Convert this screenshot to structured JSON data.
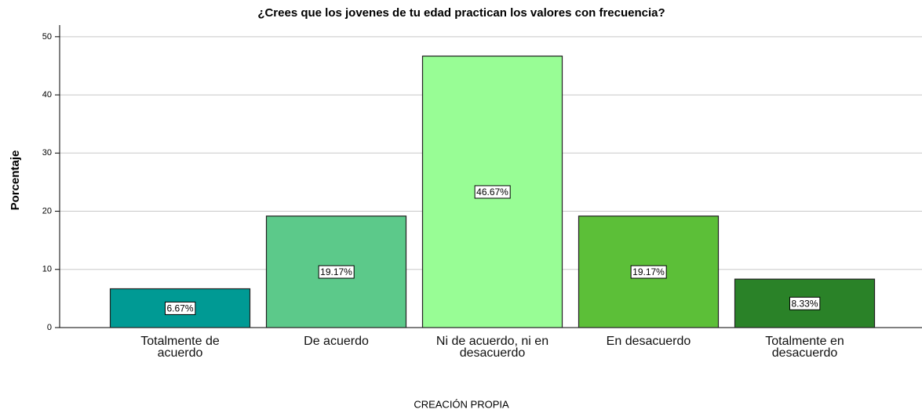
{
  "chart_data": {
    "type": "bar",
    "title": "¿Crees que los jovenes de tu edad practican los valores con frecuencia?",
    "ylabel": "Porcentaje",
    "xlabel": "CREACIÓN PROPIA",
    "categories": [
      "Totalmente de acuerdo",
      "De acuerdo",
      "Ni de acuerdo, ni en desacuerdo",
      "En desacuerdo",
      "Totalmente en desacuerdo"
    ],
    "values": [
      6.67,
      19.17,
      46.67,
      19.17,
      8.33
    ],
    "value_labels": [
      "6.67%",
      "19.17%",
      "46.67%",
      "19.17%",
      "8.33%"
    ],
    "colors": [
      "#009a94",
      "#5cc98a",
      "#98fd95",
      "#5cbf38",
      "#2a8228"
    ],
    "ylim": [
      0,
      52
    ],
    "yticks": [
      0,
      10,
      20,
      30,
      40,
      50
    ],
    "grid": true
  }
}
